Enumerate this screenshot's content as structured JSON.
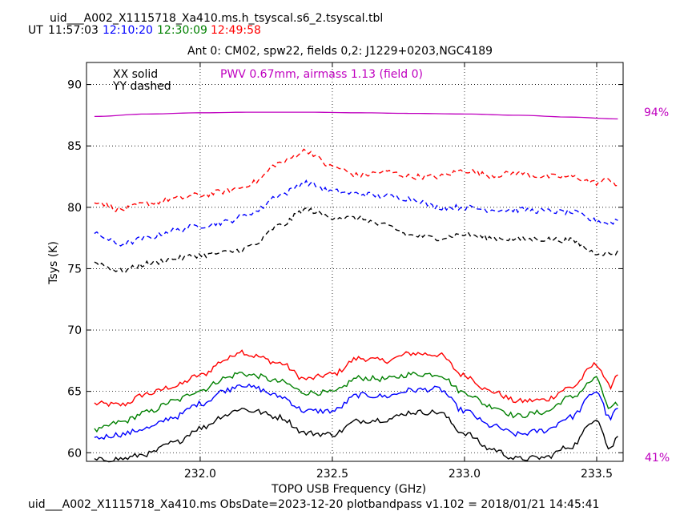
{
  "header": {
    "filename": "uid___A002_X1115718_Xa410.ms.h_tsyscal.s6_2.tsyscal.tbl",
    "ut_label": "UT",
    "times": [
      {
        "text": "11:57:03",
        "color": "#000000"
      },
      {
        "text": "12:10:20",
        "color": "#0000ff"
      },
      {
        "text": "12:30:09",
        "color": "#008000"
      },
      {
        "text": "12:49:58",
        "color": "#ff0000"
      }
    ]
  },
  "footer": {
    "text": "uid___A002_X1115718_Xa410.ms  ObsDate=2023-12-20   plotbandpass v1.102 = 2018/01/21 14:45:41"
  },
  "chart_data": {
    "type": "line",
    "title": "Ant 0: CM02,  spw22,  fields 0,2: J1229+0203,NGC4189",
    "xlabel": "TOPO USB Frequency (GHz)",
    "ylabel": "Tsys (K)",
    "xlim": [
      231.57,
      233.6
    ],
    "ylim": [
      59.3,
      91.8
    ],
    "xticks": [
      232.0,
      232.5,
      233.0,
      233.5
    ],
    "xtick_labels": [
      "232.0",
      "232.5",
      "233.0",
      "233.5"
    ],
    "yticks": [
      60,
      65,
      70,
      75,
      80,
      85,
      90
    ],
    "ytick_labels": [
      "60",
      "65",
      "70",
      "75",
      "80",
      "85",
      "90"
    ],
    "grid": true,
    "legend": [
      "XX solid",
      "YY dashed"
    ],
    "annotation": {
      "text": "PWV 0.67mm, airmass 1.13 (field 0)",
      "color": "#bf00bf"
    },
    "transmission_labels": {
      "top": "94%",
      "bottom": "41%",
      "color": "#bf00bf"
    },
    "transmission_curve": {
      "color": "#bf00bf",
      "x": [
        231.6,
        231.8,
        232.0,
        232.2,
        232.4,
        232.6,
        232.8,
        233.0,
        233.2,
        233.4,
        233.58
      ],
      "y": [
        87.4,
        87.6,
        87.7,
        87.75,
        87.75,
        87.7,
        87.65,
        87.6,
        87.5,
        87.35,
        87.2
      ]
    },
    "x": [
      231.6,
      231.7,
      231.8,
      231.9,
      232.0,
      232.1,
      232.15,
      232.2,
      232.3,
      232.4,
      232.5,
      232.6,
      232.7,
      232.8,
      232.9,
      233.0,
      233.1,
      233.2,
      233.3,
      233.4,
      233.5,
      233.55,
      233.58
    ],
    "series": [
      {
        "color": "#ff0000",
        "style": "solid",
        "values": [
          64.0,
          63.9,
          64.8,
          65.4,
          66.3,
          67.6,
          68.3,
          67.9,
          67.3,
          66.0,
          66.4,
          67.7,
          67.5,
          68.1,
          68.0,
          66.3,
          65.0,
          64.2,
          64.3,
          65.3,
          67.2,
          65.4,
          66.5
        ]
      },
      {
        "color": "#008000",
        "style": "solid",
        "values": [
          61.8,
          62.5,
          63.3,
          64.2,
          65.1,
          66.1,
          66.5,
          66.3,
          65.8,
          64.9,
          64.9,
          66.1,
          66.0,
          66.4,
          66.4,
          64.9,
          63.8,
          63.0,
          63.3,
          64.5,
          66.0,
          63.5,
          64.0
        ]
      },
      {
        "color": "#0000ff",
        "style": "solid",
        "values": [
          61.2,
          61.5,
          62.0,
          62.9,
          64.0,
          65.1,
          65.6,
          65.3,
          64.6,
          63.4,
          63.4,
          64.7,
          64.6,
          65.1,
          65.2,
          63.4,
          62.2,
          61.5,
          61.8,
          62.9,
          65.0,
          62.8,
          63.6
        ]
      },
      {
        "color": "#000000",
        "style": "solid",
        "values": [
          59.4,
          59.5,
          59.9,
          60.8,
          62.0,
          63.1,
          63.6,
          63.4,
          62.9,
          61.6,
          61.5,
          62.6,
          62.7,
          63.3,
          63.3,
          61.6,
          60.3,
          59.5,
          59.6,
          60.5,
          62.8,
          60.3,
          61.3
        ]
      },
      {
        "color": "#ff0000",
        "style": "dashed",
        "values": [
          80.5,
          79.8,
          80.3,
          80.7,
          81.0,
          81.3,
          81.6,
          82.0,
          83.6,
          84.6,
          83.3,
          82.6,
          82.9,
          82.5,
          82.5,
          83.0,
          82.6,
          82.8,
          82.5,
          82.5,
          82.0,
          82.3,
          81.8
        ]
      },
      {
        "color": "#0000ff",
        "style": "dashed",
        "values": [
          77.8,
          77.0,
          77.5,
          78.1,
          78.5,
          78.8,
          79.2,
          79.6,
          81.0,
          82.0,
          81.3,
          81.1,
          80.9,
          80.7,
          80.0,
          80.0,
          79.8,
          79.8,
          79.7,
          79.6,
          78.9,
          78.7,
          79.0
        ]
      },
      {
        "color": "#000000",
        "style": "dashed",
        "values": [
          75.5,
          74.8,
          75.4,
          75.8,
          76.1,
          76.3,
          76.5,
          76.9,
          78.5,
          79.8,
          79.2,
          79.1,
          78.5,
          77.7,
          77.5,
          77.8,
          77.5,
          77.4,
          77.4,
          77.3,
          76.3,
          76.2,
          76.3
        ]
      }
    ]
  }
}
